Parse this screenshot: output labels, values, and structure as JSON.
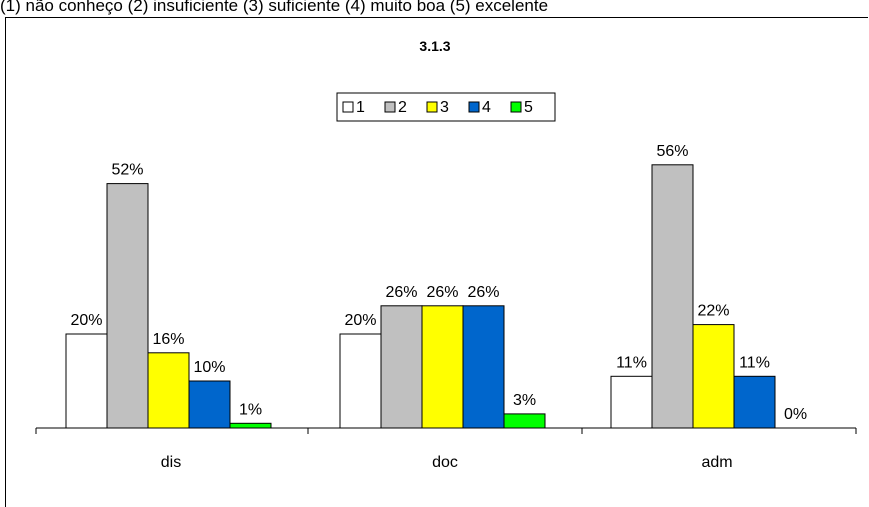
{
  "caption": "(1) não conheço (2) insuficiente (3) suficiente (4) muito boa  (5) excelente",
  "chart_data": {
    "type": "bar",
    "title": "3.1.3",
    "categories": [
      "dis",
      "doc",
      "adm"
    ],
    "series": [
      {
        "name": "1",
        "color": "#ffffff",
        "values": [
          20,
          20,
          11
        ]
      },
      {
        "name": "2",
        "color": "#c0c0c0",
        "values": [
          52,
          26,
          56
        ]
      },
      {
        "name": "3",
        "color": "#ffff00",
        "values": [
          16,
          26,
          22
        ]
      },
      {
        "name": "4",
        "color": "#0066cc",
        "values": [
          10,
          26,
          11
        ]
      },
      {
        "name": "5",
        "color": "#00ff00",
        "values": [
          1,
          3,
          0
        ]
      }
    ],
    "value_suffix": "%",
    "legend_position": "top-center",
    "grid": false
  }
}
